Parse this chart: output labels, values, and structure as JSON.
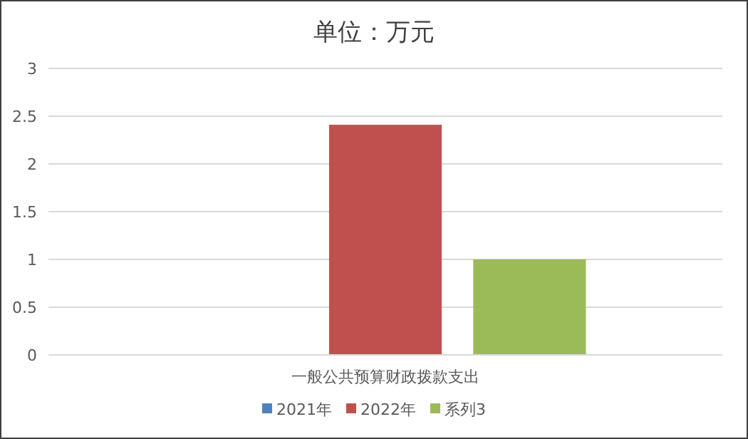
{
  "chart_data": {
    "type": "bar",
    "title": "单位：万元",
    "categories": [
      "一般公共预算财政拨款支出"
    ],
    "series": [
      {
        "name": "2021年",
        "color": "#4f81bd",
        "values": [
          0
        ]
      },
      {
        "name": "2022年",
        "color": "#c0504d",
        "values": [
          2.41
        ]
      },
      {
        "name": "系列3",
        "color": "#9bbb59",
        "values": [
          1
        ]
      }
    ],
    "ylim": [
      0,
      3
    ],
    "yticks": [
      0,
      0.5,
      1,
      1.5,
      2,
      2.5,
      3
    ],
    "grid": "y",
    "legend": "bottom"
  }
}
